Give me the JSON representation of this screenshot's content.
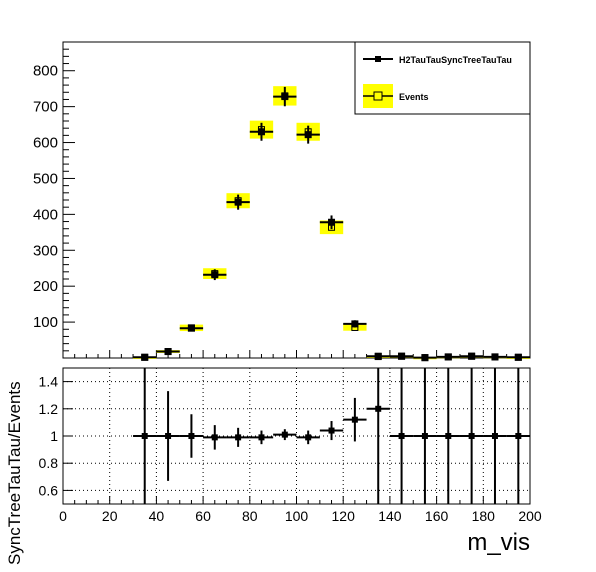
{
  "chart_data": [
    {
      "type": "scatter",
      "panel": "main",
      "xlim": [
        0,
        200
      ],
      "ylim": [
        0,
        880
      ],
      "y_ticks": [
        100,
        200,
        300,
        400,
        500,
        600,
        700,
        800
      ],
      "x_ticks": [
        0,
        20,
        40,
        60,
        80,
        100,
        120,
        140,
        160,
        180,
        200
      ],
      "show_x_tick_labels": false,
      "legend": {
        "position": "top-right",
        "entries": [
          "H2TauTauSyncTreeTauTau",
          "Events"
        ]
      },
      "series": [
        {
          "name": "H2TauTauSyncTreeTauTau",
          "marker": "filled-square",
          "color": "#000000",
          "x": [
            35,
            45,
            55,
            65,
            75,
            85,
            95,
            105,
            115,
            125,
            135,
            145,
            155,
            165,
            175,
            185,
            195
          ],
          "y": [
            2,
            18,
            83,
            232,
            434,
            630,
            728,
            622,
            378,
            95,
            5,
            5,
            1,
            3,
            5,
            3,
            2
          ],
          "yerr": [
            2,
            5,
            9,
            15,
            21,
            25,
            27,
            25,
            19,
            10,
            2,
            2,
            1,
            2,
            2,
            2,
            1
          ]
        },
        {
          "name": "Events",
          "marker": "open-square",
          "color": "#000000",
          "band_color": "#ffff00",
          "x": [
            35,
            45,
            55,
            65,
            75,
            85,
            95,
            105,
            115,
            125,
            135,
            145,
            155,
            165,
            175,
            185,
            195
          ],
          "y": [
            2,
            18,
            84,
            235,
            438,
            636,
            730,
            630,
            364,
            85,
            4,
            5,
            1,
            3,
            5,
            3,
            2
          ],
          "yerr": [
            1,
            4,
            9,
            15,
            21,
            25,
            27,
            25,
            19,
            9,
            2,
            2,
            1,
            2,
            2,
            2,
            1
          ]
        }
      ]
    },
    {
      "type": "scatter",
      "panel": "ratio",
      "xlim": [
        0,
        200
      ],
      "ylim": [
        0.5,
        1.5
      ],
      "y_ticks": [
        0.6,
        0.8,
        1,
        1.2,
        1.4
      ],
      "x_ticks": [
        0,
        20,
        40,
        60,
        80,
        100,
        120,
        140,
        160,
        180,
        200
      ],
      "grid": true,
      "xlabel": "m_vis",
      "ylabel": "SyncTreeTauTau/Events",
      "series": [
        {
          "marker": "filled-square",
          "color": "#000000",
          "x": [
            35,
            45,
            55,
            65,
            75,
            85,
            95,
            105,
            115,
            125,
            135,
            145,
            155,
            165,
            175,
            185,
            195
          ],
          "y": [
            1.0,
            1.0,
            1.0,
            0.99,
            0.99,
            0.99,
            1.01,
            0.99,
            1.04,
            1.12,
            1.2,
            1.0,
            1.0,
            1.0,
            1.0,
            1.0,
            1.0
          ],
          "yerr": [
            1.0,
            0.33,
            0.16,
            0.09,
            0.07,
            0.05,
            0.04,
            0.05,
            0.07,
            0.16,
            0.8,
            0.8,
            1.0,
            0.8,
            0.8,
            0.8,
            1.0
          ]
        }
      ]
    }
  ]
}
